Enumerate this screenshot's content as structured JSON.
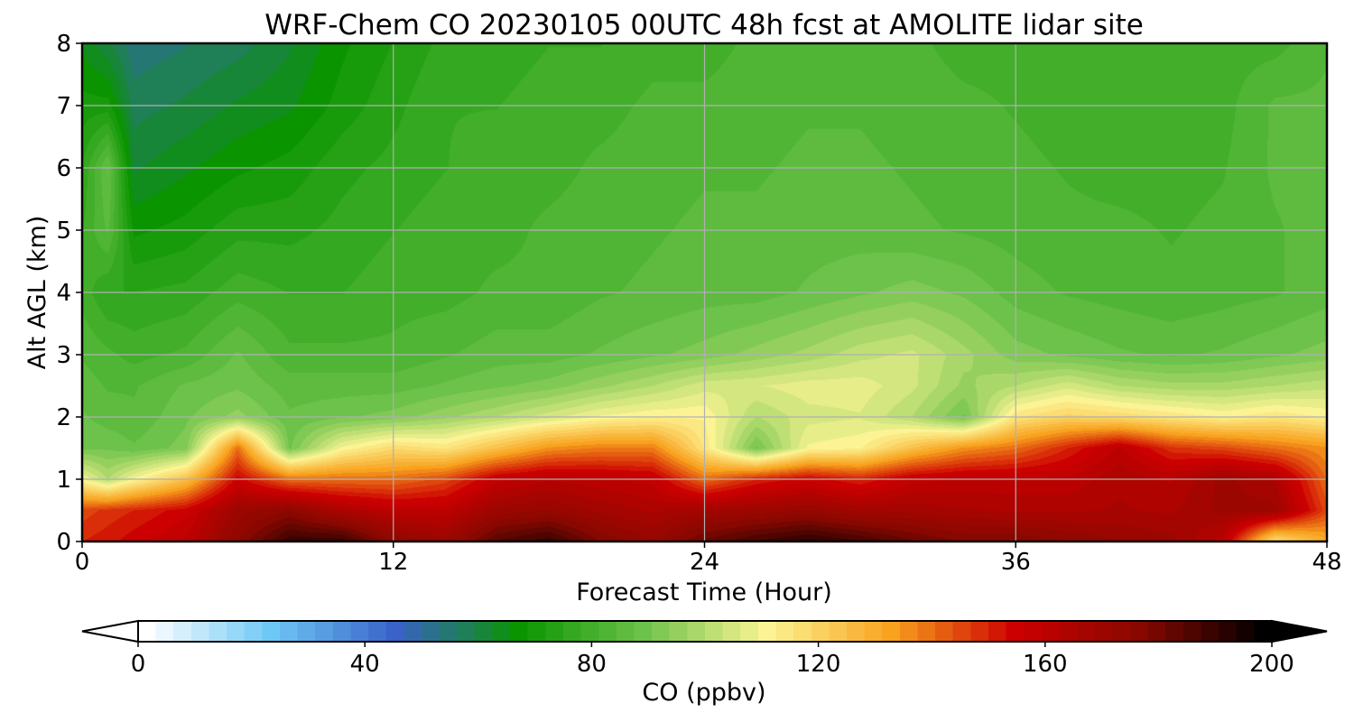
{
  "chart_data": {
    "type": "heatmap",
    "subtype": "filled-contour time-height cross section",
    "title": "WRF-Chem CO  20230105 00UTC 48h fcst at AMOLITE lidar site",
    "xlabel": "Forecast Time (Hour)",
    "ylabel": "Alt AGL (km)",
    "xlim": [
      0,
      48
    ],
    "ylim": [
      0,
      8
    ],
    "xticks": [
      0,
      12,
      24,
      36,
      48
    ],
    "yticks": [
      0,
      1,
      2,
      3,
      4,
      5,
      6,
      7,
      8
    ],
    "grid": true,
    "colorbar": {
      "label": "CO  (ppbv)",
      "orientation": "horizontal",
      "range": [
        0,
        200
      ],
      "ticks": [
        0,
        40,
        80,
        120,
        160,
        200
      ],
      "extend": "both",
      "colors": [
        "#ffffff",
        "#6ec8f5",
        "#3a62c9",
        "#0a9400",
        "#6cc24a",
        "#fcf494",
        "#f8a21e",
        "#cc0000",
        "#880800",
        "#000000"
      ]
    },
    "profile_heights_km": [
      0,
      0.5,
      1,
      1.5,
      2,
      2.5,
      3,
      4,
      5,
      6,
      7,
      8
    ],
    "profiles": [
      {
        "hour": 0,
        "co_ppbv": [
          150,
          145,
          110,
          90,
          88,
          86,
          84,
          80,
          78,
          75,
          70,
          65
        ]
      },
      {
        "hour": 1,
        "co_ppbv": [
          152,
          148,
          100,
          90,
          86,
          84,
          82,
          75,
          85,
          88,
          70,
          60
        ]
      },
      {
        "hour": 2,
        "co_ppbv": [
          155,
          150,
          110,
          88,
          85,
          84,
          80,
          75,
          68,
          62,
          58,
          54
        ]
      },
      {
        "hour": 4,
        "co_ppbv": [
          160,
          155,
          125,
          92,
          90,
          88,
          82,
          76,
          70,
          65,
          60,
          56
        ]
      },
      {
        "hour": 6,
        "co_ppbv": [
          175,
          170,
          155,
          140,
          95,
          90,
          88,
          80,
          74,
          68,
          63,
          58
        ]
      },
      {
        "hour": 8,
        "co_ppbv": [
          190,
          175,
          140,
          90,
          88,
          86,
          82,
          78,
          74,
          70,
          65,
          62
        ]
      },
      {
        "hour": 10,
        "co_ppbv": [
          190,
          165,
          140,
          110,
          90,
          86,
          82,
          78,
          76,
          74,
          70,
          68
        ]
      },
      {
        "hour": 12,
        "co_ppbv": [
          175,
          160,
          140,
          118,
          92,
          86,
          82,
          80,
          78,
          76,
          74,
          72
        ]
      },
      {
        "hour": 14,
        "co_ppbv": [
          170,
          160,
          145,
          115,
          96,
          88,
          84,
          80,
          80,
          78,
          78,
          76
        ]
      },
      {
        "hour": 16,
        "co_ppbv": [
          185,
          170,
          158,
          125,
          100,
          90,
          86,
          82,
          80,
          80,
          78,
          76
        ]
      },
      {
        "hour": 18,
        "co_ppbv": [
          190,
          172,
          162,
          135,
          105,
          92,
          86,
          82,
          82,
          80,
          80,
          78
        ]
      },
      {
        "hour": 20,
        "co_ppbv": [
          178,
          168,
          160,
          138,
          110,
          96,
          88,
          84,
          83,
          82,
          80,
          78
        ]
      },
      {
        "hour": 22,
        "co_ppbv": [
          172,
          165,
          158,
          138,
          112,
          100,
          90,
          85,
          84,
          83,
          82,
          80
        ]
      },
      {
        "hour": 24,
        "co_ppbv": [
          182,
          168,
          140,
          115,
          112,
          105,
          92,
          86,
          85,
          84,
          82,
          80
        ]
      },
      {
        "hour": 26,
        "co_ppbv": [
          188,
          170,
          150,
          90,
          100,
          106,
          95,
          86,
          85,
          84,
          83,
          82
        ]
      },
      {
        "hour": 28,
        "co_ppbv": [
          192,
          172,
          155,
          110,
          105,
          108,
          98,
          88,
          86,
          85,
          84,
          83
        ]
      },
      {
        "hour": 30,
        "co_ppbv": [
          188,
          168,
          150,
          112,
          106,
          108,
          102,
          90,
          86,
          85,
          84,
          83
        ]
      },
      {
        "hour": 32,
        "co_ppbv": [
          182,
          168,
          158,
          125,
          100,
          104,
          104,
          92,
          85,
          84,
          83,
          82
        ]
      },
      {
        "hour": 34,
        "co_ppbv": [
          178,
          166,
          160,
          135,
          90,
          96,
          98,
          90,
          84,
          83,
          82,
          80
        ]
      },
      {
        "hour": 36,
        "co_ppbv": [
          178,
          165,
          160,
          140,
          115,
          100,
          92,
          86,
          83,
          82,
          81,
          80
        ]
      },
      {
        "hour": 38,
        "co_ppbv": [
          175,
          165,
          160,
          150,
          120,
          105,
          90,
          84,
          82,
          81,
          80,
          80
        ]
      },
      {
        "hour": 40,
        "co_ppbv": [
          172,
          166,
          165,
          160,
          118,
          100,
          88,
          83,
          82,
          80,
          79,
          79
        ]
      },
      {
        "hour": 42,
        "co_ppbv": [
          170,
          165,
          162,
          148,
          115,
          98,
          87,
          82,
          81,
          80,
          79,
          79
        ]
      },
      {
        "hour": 44,
        "co_ppbv": [
          160,
          170,
          170,
          145,
          112,
          98,
          88,
          83,
          82,
          81,
          80,
          80
        ]
      },
      {
        "hour": 46,
        "co_ppbv": [
          115,
          170,
          165,
          140,
          115,
          100,
          90,
          84,
          84,
          85,
          85,
          80
        ]
      },
      {
        "hour": 48,
        "co_ppbv": [
          130,
          145,
          140,
          135,
          112,
          102,
          92,
          86,
          86,
          86,
          85,
          84
        ]
      }
    ]
  }
}
